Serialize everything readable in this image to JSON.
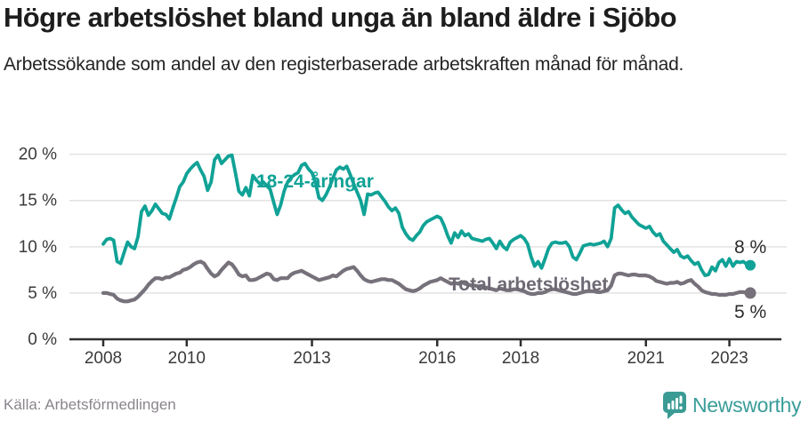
{
  "header": {
    "title": "Högre arbetslöshet bland unga än bland äldre i Sjöbo",
    "subtitle": "Arbetssökande som andel av den registerbaserade arbetskraften månad för månad."
  },
  "footer": {
    "source": "Källa: Arbetsförmedlingen",
    "brand": "Newsworthy"
  },
  "colors": {
    "youth_line": "#10a296",
    "total_line": "#76717a",
    "total_label": "#6e6973",
    "axis": "#2f2f2f",
    "grid": "#e2e2e2",
    "tick_text": "#3a3a3a",
    "end_label_text": "#2b2b2b",
    "brand_teal": "#3a9b94"
  },
  "chart_data": {
    "type": "line",
    "unit": "%",
    "x_start": "2008-01",
    "x_end": "2023-07",
    "grid": true,
    "legend_position": "inline-labels",
    "ylim": [
      0,
      21
    ],
    "y_ticks": [
      {
        "label": "0 %",
        "value": 0
      },
      {
        "label": "5 %",
        "value": 5
      },
      {
        "label": "10 %",
        "value": 10
      },
      {
        "label": "15 %",
        "value": 15
      },
      {
        "label": "20 %",
        "value": 20
      }
    ],
    "x_ticks": [
      {
        "label": "2008",
        "month": 0
      },
      {
        "label": "2010",
        "month": 24
      },
      {
        "label": "2013",
        "month": 60
      },
      {
        "label": "2016",
        "month": 96
      },
      {
        "label": "2018",
        "month": 120
      },
      {
        "label": "2021",
        "month": 156
      },
      {
        "label": "2023",
        "month": 180
      }
    ],
    "series": [
      {
        "name": "18-24-åringar",
        "color": "#10a296",
        "end_label": "8 %",
        "values": [
          10.3,
          10.8,
          10.9,
          10.7,
          8.4,
          8.2,
          9.4,
          10.5,
          10.0,
          9.8,
          11.1,
          13.8,
          14.4,
          13.4,
          13.9,
          14.6,
          14.1,
          13.6,
          13.5,
          13.0,
          14.2,
          15.3,
          16.5,
          17.0,
          17.9,
          18.4,
          18.8,
          19.1,
          18.3,
          17.6,
          16.1,
          17.0,
          19.4,
          19.9,
          19.0,
          19.4,
          19.8,
          19.9,
          18.0,
          16.0,
          15.6,
          16.4,
          15.5,
          17.7,
          17.2,
          16.8,
          17.0,
          16.6,
          16.2,
          14.8,
          13.5,
          14.5,
          16.0,
          17.0,
          17.5,
          17.8,
          18.0,
          18.8,
          19.0,
          18.4,
          18.0,
          17.0,
          15.3,
          15.0,
          15.6,
          16.4,
          17.4,
          18.3,
          18.6,
          18.4,
          18.7,
          17.8,
          16.8,
          15.9,
          15.0,
          13.5,
          15.7,
          15.6,
          15.8,
          15.9,
          15.4,
          14.9,
          14.3,
          13.9,
          14.2,
          13.6,
          12.1,
          11.4,
          10.9,
          10.7,
          11.2,
          11.6,
          12.3,
          12.7,
          12.9,
          13.1,
          13.3,
          13.1,
          12.3,
          11.2,
          10.4,
          11.5,
          11.0,
          11.7,
          11.2,
          11.4,
          10.9,
          10.8,
          10.7,
          10.6,
          10.8,
          10.9,
          10.4,
          9.8,
          10.6,
          10.0,
          9.7,
          10.5,
          10.8,
          11.0,
          11.2,
          10.9,
          10.3,
          8.9,
          7.9,
          8.4,
          7.7,
          8.7,
          9.8,
          10.4,
          10.5,
          10.4,
          10.4,
          10.5,
          10.0,
          8.9,
          8.6,
          9.3,
          10.1,
          10.2,
          10.3,
          10.2,
          10.3,
          10.4,
          10.6,
          10.0,
          10.9,
          14.2,
          14.5,
          14.0,
          13.6,
          13.8,
          13.2,
          12.8,
          12.4,
          12.2,
          12.0,
          12.2,
          11.6,
          11.2,
          11.4,
          10.6,
          10.2,
          9.8,
          9.4,
          9.7,
          9.0,
          8.8,
          9.0,
          8.5,
          8.1,
          8.3,
          7.5,
          6.9,
          7.0,
          7.8,
          7.4,
          8.3,
          8.6,
          7.9,
          8.7,
          7.9,
          8.4,
          8.3,
          8.4,
          8.1,
          8.0
        ]
      },
      {
        "name": "Total arbetslöshet",
        "color": "#76717a",
        "end_label": "5 %",
        "values": [
          5.0,
          5.0,
          4.9,
          4.8,
          4.4,
          4.2,
          4.1,
          4.1,
          4.2,
          4.3,
          4.6,
          5.0,
          5.4,
          5.9,
          6.3,
          6.6,
          6.6,
          6.5,
          6.7,
          6.7,
          6.9,
          7.1,
          7.2,
          7.5,
          7.6,
          7.8,
          8.1,
          8.3,
          8.4,
          8.2,
          7.6,
          7.1,
          6.8,
          7.0,
          7.5,
          7.9,
          8.3,
          8.1,
          7.6,
          7.0,
          6.8,
          6.9,
          6.4,
          6.4,
          6.5,
          6.7,
          6.9,
          7.1,
          7.0,
          6.5,
          6.4,
          6.6,
          6.6,
          6.6,
          7.0,
          7.2,
          7.3,
          7.4,
          7.2,
          7.0,
          6.8,
          6.6,
          6.4,
          6.5,
          6.6,
          6.7,
          6.9,
          6.8,
          7.1,
          7.4,
          7.6,
          7.7,
          7.8,
          7.4,
          6.9,
          6.5,
          6.3,
          6.2,
          6.3,
          6.4,
          6.5,
          6.5,
          6.4,
          6.4,
          6.2,
          6.0,
          5.7,
          5.4,
          5.3,
          5.2,
          5.3,
          5.5,
          5.8,
          6.0,
          6.2,
          6.3,
          6.4,
          6.6,
          6.4,
          6.2,
          6.0,
          6.1,
          6.0,
          6.2,
          6.0,
          5.9,
          5.8,
          5.8,
          5.7,
          5.6,
          5.6,
          5.5,
          5.4,
          5.3,
          5.5,
          5.4,
          5.3,
          5.3,
          5.4,
          5.4,
          5.3,
          5.2,
          5.0,
          4.9,
          4.9,
          5.0,
          5.0,
          5.1,
          5.3,
          5.4,
          5.4,
          5.3,
          5.2,
          5.1,
          5.0,
          4.9,
          4.9,
          5.0,
          5.1,
          5.2,
          5.2,
          5.2,
          5.1,
          5.1,
          5.2,
          5.3,
          5.8,
          6.9,
          7.1,
          7.1,
          7.0,
          6.9,
          7.0,
          7.0,
          6.9,
          6.9,
          6.9,
          6.8,
          6.6,
          6.3,
          6.2,
          6.1,
          6.0,
          6.1,
          6.1,
          6.2,
          6.0,
          6.1,
          6.3,
          6.4,
          6.0,
          5.7,
          5.3,
          5.1,
          5.0,
          4.9,
          4.9,
          4.8,
          4.8,
          4.8,
          4.9,
          4.9,
          5.0,
          5.1,
          5.1,
          5.0,
          5.0
        ]
      }
    ]
  }
}
